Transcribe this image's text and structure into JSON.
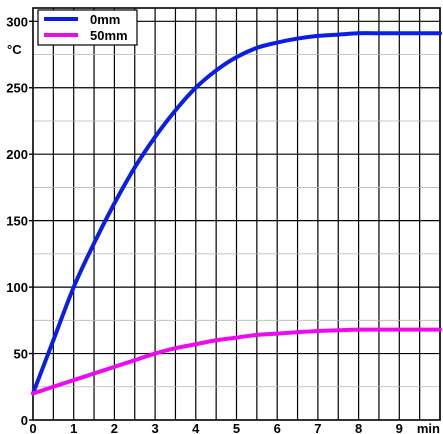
{
  "chart_data": {
    "type": "line",
    "title": "",
    "xlabel": "min",
    "ylabel": "°C",
    "xlim": [
      0,
      10
    ],
    "ylim": [
      0,
      310
    ],
    "x_ticks": [
      0,
      1,
      2,
      3,
      4,
      5,
      6,
      7,
      8,
      9
    ],
    "y_ticks": [
      0,
      50,
      100,
      150,
      200,
      250,
      300
    ],
    "grid": true,
    "legend_position": "top-left",
    "series": [
      {
        "name": "0mm",
        "color": "#0a1ee8",
        "x": [
          0,
          0.5,
          1,
          1.5,
          2,
          2.5,
          3,
          3.5,
          4,
          4.5,
          5,
          5.5,
          6,
          6.5,
          7,
          7.5,
          8,
          8.5,
          9,
          9.5,
          10
        ],
        "y": [
          20,
          60,
          100,
          133,
          163,
          190,
          213,
          233,
          250,
          263,
          273,
          280,
          284,
          287,
          289,
          290,
          291,
          291,
          291,
          291,
          291
        ]
      },
      {
        "name": "50mm",
        "color": "#ee0aee",
        "x": [
          0,
          0.5,
          1,
          1.5,
          2,
          2.5,
          3,
          3.5,
          4,
          4.5,
          5,
          5.5,
          6,
          6.5,
          7,
          7.5,
          8,
          8.5,
          9,
          9.5,
          10
        ],
        "y": [
          20,
          25,
          30,
          35,
          40,
          45,
          50,
          54,
          57,
          60,
          62,
          64,
          65,
          66,
          67,
          67.5,
          68,
          68,
          68,
          68,
          68
        ]
      }
    ]
  }
}
